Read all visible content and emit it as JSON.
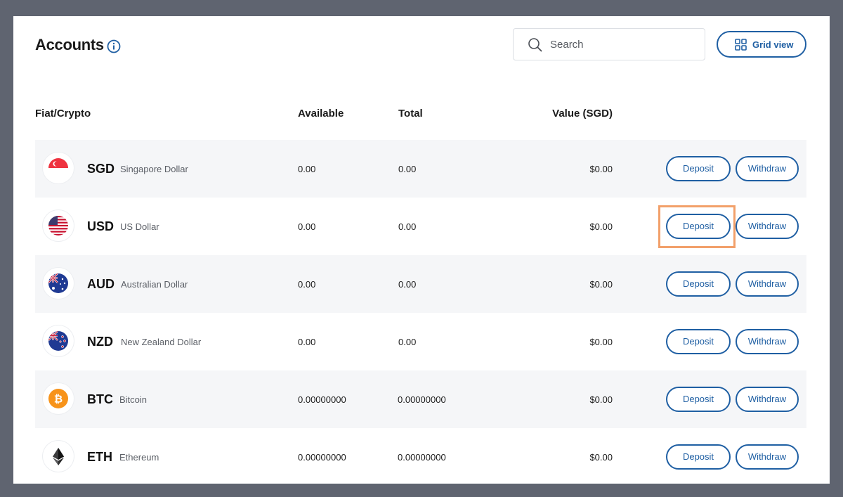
{
  "header": {
    "title": "Accounts",
    "search_placeholder": "Search",
    "grid_view_label": "Grid view"
  },
  "table": {
    "columns": {
      "asset": "Fiat/Crypto",
      "available": "Available",
      "total": "Total",
      "value": "Value (SGD)"
    },
    "deposit_label": "Deposit",
    "withdraw_label": "Withdraw",
    "rows": [
      {
        "code": "SGD",
        "name": "Singapore Dollar",
        "available": "0.00",
        "total": "0.00",
        "value": "$0.00",
        "icon": "singapore-flag-icon"
      },
      {
        "code": "USD",
        "name": "US Dollar",
        "available": "0.00",
        "total": "0.00",
        "value": "$0.00",
        "icon": "us-flag-icon"
      },
      {
        "code": "AUD",
        "name": "Australian Dollar",
        "available": "0.00",
        "total": "0.00",
        "value": "$0.00",
        "icon": "australia-flag-icon"
      },
      {
        "code": "NZD",
        "name": "New Zealand Dollar",
        "available": "0.00",
        "total": "0.00",
        "value": "$0.00",
        "icon": "new-zealand-flag-icon"
      },
      {
        "code": "BTC",
        "name": "Bitcoin",
        "available": "0.00000000",
        "total": "0.00000000",
        "value": "$0.00",
        "icon": "bitcoin-icon"
      },
      {
        "code": "ETH",
        "name": "Ethereum",
        "available": "0.00000000",
        "total": "0.00000000",
        "value": "$0.00",
        "icon": "ethereum-icon"
      }
    ]
  },
  "colors": {
    "accent": "#1f5fa3",
    "row_shade": "#f5f6f8",
    "highlight": "#f2a06a",
    "backdrop": "#5f6470"
  }
}
